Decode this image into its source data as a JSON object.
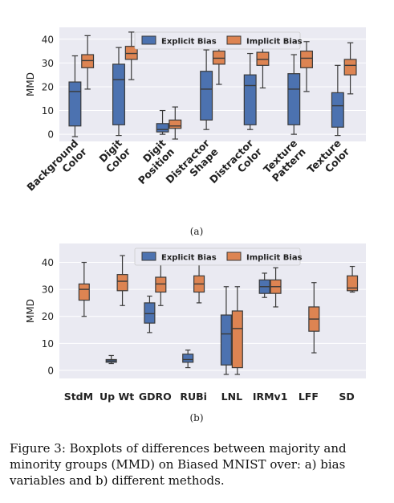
{
  "figure": {
    "caption": "Figure 3: Boxplots of differences between majority and minority groups (MMD) on Biased MNIST over: a) bias variables and b) different methods.",
    "label_a": "(a)",
    "label_b": "(b)"
  },
  "colors": {
    "explicit": "#4c72b0",
    "implicit": "#dd8452",
    "plot_bg": "#eaeaf2"
  },
  "chart_data": [
    {
      "type": "box",
      "title": "",
      "xlabel": "",
      "ylabel": "MMD",
      "ylim": [
        -3,
        45
      ],
      "yticks": [
        0,
        10,
        20,
        30,
        40
      ],
      "grid": true,
      "legend_position": "top-center",
      "categories": [
        "Background\nColor",
        "Digit\nColor",
        "Digit\nPosition",
        "Distractor\nShape",
        "Distractor\nColor",
        "Texture\nPattern",
        "Texture\nColor"
      ],
      "series": [
        {
          "name": "Explicit Bias",
          "boxes": [
            {
              "whislo": -1,
              "q1": 3.5,
              "med": 18,
              "q3": 22,
              "whishi": 33
            },
            {
              "whislo": -0.5,
              "q1": 4,
              "med": 23,
              "q3": 29.5,
              "whishi": 36.5
            },
            {
              "whislo": 0,
              "q1": 1,
              "med": 2,
              "q3": 4.5,
              "whishi": 10
            },
            {
              "whislo": 2,
              "q1": 6,
              "med": 19,
              "q3": 26.5,
              "whishi": 35.5
            },
            {
              "whislo": 2,
              "q1": 4,
              "med": 20.5,
              "q3": 25,
              "whishi": 34
            },
            {
              "whislo": 0,
              "q1": 4,
              "med": 19,
              "q3": 25.5,
              "whishi": 33.5
            },
            {
              "whislo": -0.5,
              "q1": 3,
              "med": 12,
              "q3": 17.5,
              "whishi": 29
            }
          ]
        },
        {
          "name": "Implicit Bias",
          "boxes": [
            {
              "whislo": 19,
              "q1": 28,
              "med": 31,
              "q3": 33.5,
              "whishi": 41.5
            },
            {
              "whislo": 23,
              "q1": 31.5,
              "med": 34,
              "q3": 37,
              "whishi": 43
            },
            {
              "whislo": -2,
              "q1": 2.5,
              "med": 3.5,
              "q3": 6,
              "whishi": 11.5
            },
            {
              "whislo": 21,
              "q1": 29.5,
              "med": 32,
              "q3": 35,
              "whishi": 42.5
            },
            {
              "whislo": 19.5,
              "q1": 29,
              "med": 31.5,
              "q3": 34.5,
              "whishi": 40
            },
            {
              "whislo": 18,
              "q1": 28,
              "med": 32,
              "q3": 35,
              "whishi": 39
            },
            {
              "whislo": 17,
              "q1": 25,
              "med": 29,
              "q3": 31.5,
              "whishi": 38.5
            }
          ]
        }
      ]
    },
    {
      "type": "box",
      "title": "",
      "xlabel": "",
      "ylabel": "MMD",
      "ylim": [
        -3,
        47
      ],
      "yticks": [
        0,
        10,
        20,
        30,
        40
      ],
      "grid": true,
      "legend_position": "top-center",
      "categories": [
        "StdM",
        "Up Wt",
        "GDRO",
        "RUBi",
        "LNL",
        "IRMv1",
        "LFF",
        "SD"
      ],
      "series": [
        {
          "name": "Explicit Bias",
          "boxes": [
            null,
            {
              "whislo": 2.5,
              "q1": 3,
              "med": 3.5,
              "q3": 4,
              "whishi": 5.5
            },
            {
              "whislo": 14,
              "q1": 17.5,
              "med": 21,
              "q3": 25,
              "whishi": 27.5
            },
            {
              "whislo": 1,
              "q1": 3,
              "med": 4,
              "q3": 6,
              "whishi": 7.5
            },
            {
              "whislo": -1.5,
              "q1": 2,
              "med": 13.5,
              "q3": 20.5,
              "whishi": 31
            },
            {
              "whislo": 27,
              "q1": 28.5,
              "med": 31,
              "q3": 33.5,
              "whishi": 36
            },
            null,
            null
          ]
        },
        {
          "name": "Implicit Bias",
          "boxes": [
            {
              "whislo": 20,
              "q1": 26,
              "med": 30,
              "q3": 32,
              "whishi": 40
            },
            {
              "whislo": 24,
              "q1": 29.5,
              "med": 33,
              "q3": 35.5,
              "whishi": 42.5
            },
            {
              "whislo": 24,
              "q1": 29,
              "med": 32,
              "q3": 34.5,
              "whishi": 39.5
            },
            {
              "whislo": 25,
              "q1": 29,
              "med": 32,
              "q3": 35,
              "whishi": 43
            },
            {
              "whislo": -1.5,
              "q1": 1,
              "med": 15.5,
              "q3": 22,
              "whishi": 31
            },
            {
              "whislo": 23.5,
              "q1": 28.5,
              "med": 31,
              "q3": 33.5,
              "whishi": 38
            },
            {
              "whislo": 6.5,
              "q1": 14.5,
              "med": 19,
              "q3": 23.5,
              "whishi": 32.5
            },
            {
              "whislo": 29,
              "q1": 29.5,
              "med": 30.5,
              "q3": 35,
              "whishi": 38.5
            }
          ]
        }
      ]
    }
  ]
}
